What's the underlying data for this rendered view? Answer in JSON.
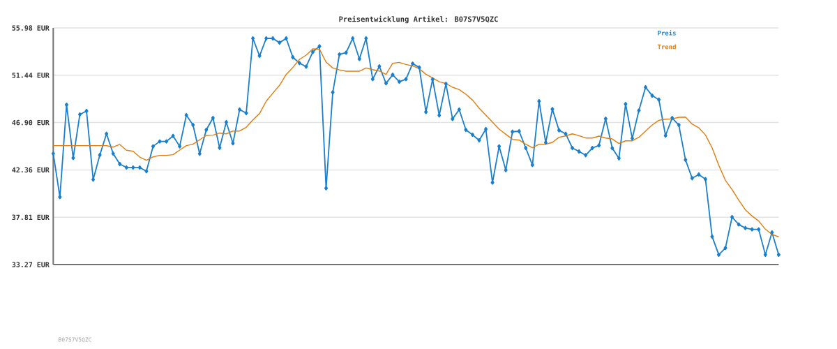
{
  "chart_data": {
    "type": "line",
    "title": "Preisentwicklung Artikel: B07S7V5QZC",
    "annotations": [
      "B07S7V5QZC"
    ],
    "categories": [
      null,
      null,
      null,
      null,
      null,
      null,
      null,
      null,
      null,
      null,
      null,
      null,
      null,
      null,
      null,
      null,
      null,
      null,
      null,
      null,
      null,
      null,
      null,
      null,
      null,
      null,
      null,
      null,
      null,
      null,
      null,
      null,
      null,
      null,
      null,
      null,
      null,
      null,
      null,
      null,
      null,
      null,
      null,
      null,
      null,
      null,
      null,
      null,
      null,
      null,
      null,
      null,
      null,
      null,
      null,
      null,
      null,
      null,
      null,
      null,
      null,
      null,
      null,
      null,
      null,
      null,
      null,
      null,
      null,
      null,
      null,
      null,
      null,
      null,
      null,
      null,
      null,
      null,
      null,
      null,
      null,
      null,
      null,
      null,
      null,
      null,
      null,
      null,
      null,
      null,
      null,
      null,
      null,
      null,
      null,
      null,
      null,
      null,
      null,
      null,
      null,
      null,
      null,
      null,
      null,
      null,
      null,
      null,
      null,
      null
    ],
    "series": [
      {
        "name": "Preis",
        "color": "#1a7fcc",
        "marker": "diamond",
        "values": [
          43.93,
          39.75,
          48.61,
          43.5,
          47.68,
          48.01,
          41.43,
          43.79,
          45.82,
          43.93,
          42.92,
          42.59,
          42.59,
          42.59,
          42.23,
          44.62,
          45.09,
          45.09,
          45.62,
          44.62,
          47.61,
          46.67,
          43.91,
          46.2,
          47.34,
          44.48,
          46.94,
          44.91,
          48.15,
          47.81,
          54.98,
          53.3,
          54.98,
          54.98,
          54.57,
          54.98,
          53.17,
          52.61,
          52.27,
          53.68,
          54.22,
          40.6,
          49.8,
          53.44,
          53.61,
          54.98,
          53.01,
          54.98,
          51.07,
          52.3,
          50.67,
          51.49,
          50.82,
          51.07,
          52.56,
          52.19,
          47.92,
          51.05,
          47.59,
          50.62,
          47.25,
          48.15,
          46.2,
          45.73,
          45.2,
          46.27,
          41.14,
          44.62,
          42.34,
          46.02,
          46.07,
          44.46,
          42.83,
          48.95,
          44.98,
          48.19,
          46.16,
          45.82,
          44.46,
          44.13,
          43.77,
          44.46,
          44.71,
          47.27,
          44.44,
          43.48,
          48.68,
          45.38,
          48.06,
          50.29,
          49.48,
          49.1,
          45.65,
          47.34,
          46.67,
          43.32,
          41.56,
          41.92,
          41.47,
          35.96,
          34.22,
          34.86,
          37.83,
          37.12,
          36.78,
          36.65,
          36.65,
          34.22,
          36.36,
          34.22
        ]
      },
      {
        "name": "Trend",
        "color": "#e07c10",
        "marker": "none",
        "values": [
          44.69,
          44.69,
          44.69,
          44.69,
          44.69,
          44.69,
          44.69,
          44.69,
          44.69,
          44.55,
          44.8,
          44.24,
          44.15,
          43.59,
          43.28,
          43.61,
          43.75,
          43.75,
          43.82,
          44.26,
          44.69,
          44.82,
          45.25,
          45.67,
          45.69,
          45.89,
          45.82,
          46.09,
          46.09,
          46.45,
          47.16,
          47.77,
          48.95,
          49.73,
          50.47,
          51.52,
          52.19,
          52.97,
          53.37,
          53.97,
          53.95,
          52.7,
          52.14,
          51.96,
          51.83,
          51.83,
          51.83,
          52.14,
          51.98,
          51.85,
          51.52,
          52.59,
          52.68,
          52.48,
          52.34,
          52.07,
          51.54,
          51.18,
          50.82,
          50.65,
          50.29,
          50.06,
          49.62,
          49.06,
          48.28,
          47.61,
          46.94,
          46.27,
          45.78,
          45.29,
          45.22,
          44.82,
          44.48,
          44.82,
          44.82,
          45.0,
          45.49,
          45.62,
          45.82,
          45.64,
          45.42,
          45.42,
          45.6,
          45.42,
          45.33,
          44.89,
          45.15,
          45.15,
          45.49,
          46.09,
          46.67,
          47.12,
          47.23,
          47.25,
          47.41,
          47.43,
          46.76,
          46.4,
          45.71,
          44.48,
          42.81,
          41.36,
          40.47,
          39.46,
          38.52,
          37.94,
          37.45,
          36.67,
          36.16,
          35.94
        ]
      }
    ],
    "ylim": [
      33.27,
      55.98
    ],
    "yticks": [
      {
        "value": 33.27,
        "label": "33.27 EUR"
      },
      {
        "value": 37.81,
        "label": "37.81 EUR"
      },
      {
        "value": 42.36,
        "label": "42.36 EUR"
      },
      {
        "value": 46.9,
        "label": "46.90 EUR"
      },
      {
        "value": 51.44,
        "label": "51.44 EUR"
      },
      {
        "value": 55.98,
        "label": "55.98 EUR"
      }
    ],
    "grid": "y",
    "legend": "top right"
  }
}
